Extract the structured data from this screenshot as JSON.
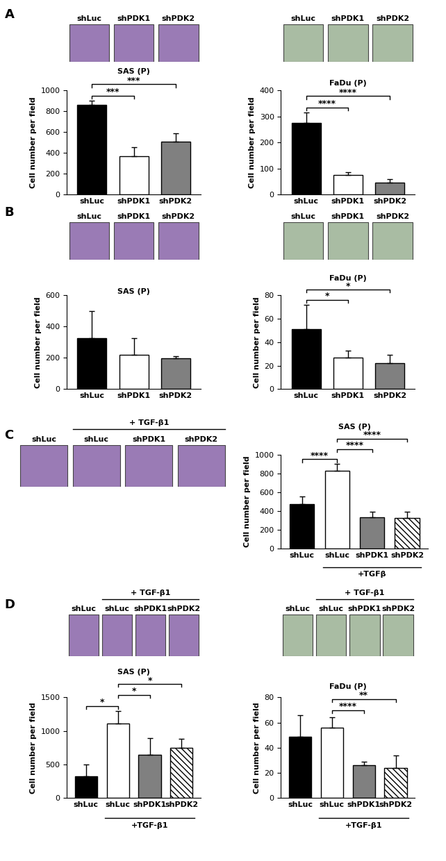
{
  "chart_data": [
    {
      "type": "bar",
      "panel": "A",
      "title": "SAS (P)",
      "ylabel": "Cell number per field",
      "image_labels": [
        "shLuc",
        "shPDK1",
        "shPDK2"
      ],
      "categories": [
        "shLuc",
        "shPDK1",
        "shPDK2"
      ],
      "values": [
        860,
        365,
        505
      ],
      "errors": [
        40,
        90,
        85
      ],
      "colors": [
        "#000000",
        "#ffffff",
        "#808080"
      ],
      "ylim": [
        0,
        1000
      ],
      "yticks": [
        0,
        200,
        400,
        600,
        800,
        1000
      ],
      "significance": [
        {
          "pair": [
            0,
            1
          ],
          "label": "***"
        },
        {
          "pair": [
            0,
            2
          ],
          "label": "***"
        }
      ]
    },
    {
      "type": "bar",
      "title": "FaDu (P)",
      "ylabel": "Cell number per field",
      "image_labels": [
        "shLuc",
        "shPDK1",
        "shPDK2"
      ],
      "categories": [
        "shLuc",
        "shPDK1",
        "shPDK2"
      ],
      "values": [
        275,
        75,
        47
      ],
      "errors": [
        40,
        12,
        12
      ],
      "colors": [
        "#000000",
        "#ffffff",
        "#808080"
      ],
      "ylim": [
        0,
        400
      ],
      "yticks": [
        0,
        100,
        200,
        300,
        400
      ],
      "significance": [
        {
          "pair": [
            0,
            1
          ],
          "label": "****"
        },
        {
          "pair": [
            0,
            2
          ],
          "label": "****"
        }
      ]
    },
    {
      "type": "bar",
      "panel": "B",
      "title": "SAS (P)",
      "ylabel": "Cell number per field",
      "image_labels": [
        "shLuc",
        "shPDK1",
        "shPDK2"
      ],
      "categories": [
        "shLuc",
        "shPDK1",
        "shPDK2"
      ],
      "values": [
        325,
        220,
        197
      ],
      "errors": [
        175,
        105,
        12
      ],
      "colors": [
        "#000000",
        "#ffffff",
        "#808080"
      ],
      "ylim": [
        0,
        600
      ],
      "yticks": [
        0,
        200,
        400,
        600
      ],
      "significance": []
    },
    {
      "type": "bar",
      "title": "FaDu (P)",
      "ylabel": "Cell number per field",
      "image_labels": [
        "shLuc",
        "shPDK1",
        "shPDK2"
      ],
      "categories": [
        "shLuc",
        "shPDK1",
        "shPDK2"
      ],
      "values": [
        51,
        27,
        22
      ],
      "errors": [
        21,
        6,
        7
      ],
      "colors": [
        "#000000",
        "#ffffff",
        "#808080"
      ],
      "ylim": [
        0,
        80
      ],
      "yticks": [
        0,
        20,
        40,
        60,
        80
      ],
      "significance": [
        {
          "pair": [
            0,
            1
          ],
          "label": "*"
        },
        {
          "pair": [
            0,
            2
          ],
          "label": "*"
        }
      ]
    },
    {
      "type": "bar",
      "panel": "C",
      "title": "SAS (P)",
      "ylabel": "Cell number per field",
      "image_labels": [
        "shLuc",
        "shLuc",
        "shPDK1",
        "shPDK2"
      ],
      "image_group": {
        "label": "+ TGF-β1",
        "from": 1,
        "to": 3
      },
      "categories": [
        "shLuc",
        "shLuc",
        "shPDK1",
        "shPDK2"
      ],
      "values": [
        475,
        825,
        330,
        325
      ],
      "errors": [
        80,
        75,
        60,
        65
      ],
      "colors": [
        "#000000",
        "#ffffff",
        "#808080",
        "#ffffff"
      ],
      "group": {
        "label": "+TGFβ",
        "from": 1,
        "to": 3
      },
      "ylim": [
        0,
        1000
      ],
      "yticks": [
        0,
        200,
        400,
        600,
        800,
        1000
      ],
      "significance": [
        {
          "pair": [
            0,
            1
          ],
          "label": "****"
        },
        {
          "pair": [
            1,
            2
          ],
          "label": "****"
        },
        {
          "pair": [
            1,
            3
          ],
          "label": "****"
        }
      ]
    },
    {
      "type": "bar",
      "panel": "D",
      "title": "SAS (P)",
      "ylabel": "Cell number per field",
      "image_labels": [
        "shLuc",
        "shLuc",
        "shPDK1",
        "shPDK2"
      ],
      "image_group": {
        "label": "+ TGF-β1",
        "from": 1,
        "to": 3
      },
      "categories": [
        "shLuc",
        "shLuc",
        "shPDK1",
        "shPDK2"
      ],
      "values": [
        330,
        1110,
        650,
        750
      ],
      "errors": [
        170,
        185,
        245,
        135
      ],
      "colors": [
        "#000000",
        "#ffffff",
        "#808080",
        "#ffffff"
      ],
      "group": {
        "label": "+TGF-β1",
        "from": 1,
        "to": 3
      },
      "ylim": [
        0,
        1500
      ],
      "yticks": [
        0,
        500,
        1000,
        1500
      ],
      "significance": [
        {
          "pair": [
            0,
            1
          ],
          "label": "*"
        },
        {
          "pair": [
            1,
            2
          ],
          "label": "*"
        },
        {
          "pair": [
            1,
            3
          ],
          "label": "*"
        }
      ]
    },
    {
      "type": "bar",
      "title": "FaDu (P)",
      "ylabel": "Cell number per field",
      "image_labels": [
        "shLuc",
        "shLuc",
        "shPDK1",
        "shPDK2"
      ],
      "image_group": {
        "label": "+ TGF-β1",
        "from": 1,
        "to": 3
      },
      "categories": [
        "shLuc",
        "shLuc",
        "shPDK1",
        "shPDK2"
      ],
      "values": [
        49,
        56,
        26,
        24
      ],
      "errors": [
        17,
        8,
        3,
        10
      ],
      "colors": [
        "#000000",
        "#ffffff",
        "#808080",
        "#ffffff"
      ],
      "group": {
        "label": "+TGF-β1",
        "from": 1,
        "to": 3
      },
      "ylim": [
        0,
        80
      ],
      "yticks": [
        0,
        20,
        40,
        60,
        80
      ],
      "significance": [
        {
          "pair": [
            1,
            2
          ],
          "label": "****"
        },
        {
          "pair": [
            1,
            3
          ],
          "label": "**"
        }
      ]
    }
  ]
}
